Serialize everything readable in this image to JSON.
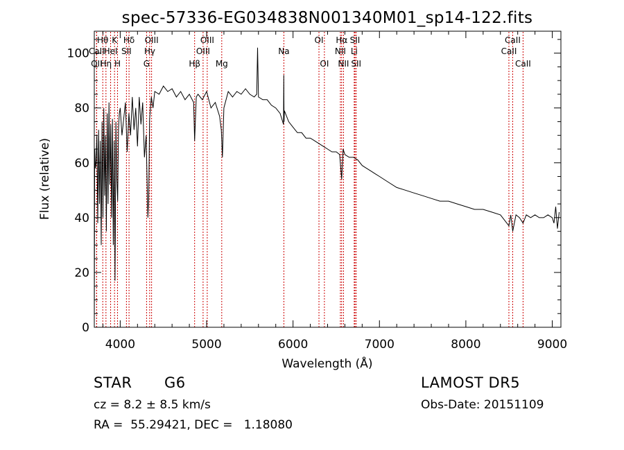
{
  "chart_data": {
    "type": "line",
    "title": "spec-57336-EG034838N001340M01_sp14-122.fits",
    "xlabel": "Wavelength (Å)",
    "ylabel": "Flux (relative)",
    "xlim": [
      3700,
      9100
    ],
    "ylim": [
      0,
      108
    ],
    "x_ticks": [
      4000,
      5000,
      6000,
      7000,
      8000,
      9000
    ],
    "y_ticks": [
      0,
      20,
      40,
      60,
      80,
      100
    ],
    "grid": false,
    "line_color": "#000000",
    "marker_color": "#cc0000",
    "series": [
      {
        "x": [
          3700,
          3705,
          3712,
          3720,
          3730,
          3740,
          3750,
          3760,
          3770,
          3780,
          3790,
          3800,
          3810,
          3820,
          3830,
          3840,
          3850,
          3860,
          3870,
          3880,
          3890,
          3900,
          3910,
          3920,
          3930,
          3940,
          3950,
          3960,
          3970,
          3980,
          3990,
          4000,
          4020,
          4040,
          4060,
          4080,
          4100,
          4120,
          4140,
          4160,
          4180,
          4200,
          4220,
          4240,
          4260,
          4280,
          4300,
          4320,
          4330,
          4340,
          4360,
          4380,
          4400,
          4450,
          4500,
          4550,
          4600,
          4650,
          4700,
          4750,
          4800,
          4850,
          4861,
          4880,
          4900,
          4950,
          5000,
          5050,
          5100,
          5150,
          5170,
          5183,
          5200,
          5250,
          5300,
          5350,
          5400,
          5450,
          5500,
          5550,
          5580,
          5590,
          5600,
          5650,
          5700,
          5750,
          5800,
          5850,
          5890,
          5893,
          5896,
          5900,
          5950,
          6000,
          6050,
          6100,
          6150,
          6200,
          6250,
          6300,
          6350,
          6400,
          6450,
          6500,
          6540,
          6563,
          6580,
          6600,
          6650,
          6700,
          6750,
          6800,
          6850,
          6900,
          6950,
          7000,
          7100,
          7200,
          7300,
          7400,
          7500,
          7600,
          7700,
          7800,
          7900,
          8000,
          8100,
          8200,
          8300,
          8400,
          8498,
          8520,
          8542,
          8580,
          8620,
          8662,
          8700,
          8750,
          8800,
          8850,
          8900,
          8950,
          9000,
          9020,
          9040,
          9060,
          9080
        ],
        "y": [
          0,
          65,
          58,
          60,
          70,
          38,
          72,
          45,
          68,
          30,
          75,
          40,
          80,
          48,
          70,
          35,
          78,
          45,
          82,
          52,
          74,
          40,
          76,
          30,
          68,
          17,
          75,
          55,
          46,
          72,
          78,
          80,
          70,
          76,
          82,
          64,
          78,
          70,
          84,
          72,
          80,
          66,
          84,
          74,
          82,
          62,
          70,
          40,
          48,
          76,
          84,
          80,
          86,
          85,
          88,
          86,
          87,
          84,
          86,
          83,
          85,
          82,
          68,
          84,
          85,
          83,
          86,
          80,
          82,
          77,
          72,
          62,
          80,
          86,
          84,
          86,
          85,
          87,
          85,
          84,
          85,
          102,
          84,
          83,
          83,
          81,
          80,
          78,
          74,
          92,
          75,
          79,
          75,
          73,
          71,
          71,
          69,
          69,
          68,
          67,
          66,
          65,
          64,
          64,
          63,
          54,
          65,
          63,
          62,
          62,
          61,
          59,
          58,
          57,
          56,
          55,
          53,
          51,
          50,
          49,
          48,
          47,
          46,
          46,
          45,
          44,
          43,
          43,
          42,
          41,
          37,
          41,
          35,
          41,
          40,
          38,
          41,
          40,
          41,
          40,
          40,
          41,
          40,
          38,
          44,
          36,
          42
        ]
      }
    ],
    "spectral_lines": [
      {
        "name": "Hθ",
        "x": 3798,
        "row": 1
      },
      {
        "name": "CaII",
        "x": 3727,
        "row": 2
      },
      {
        "name": "OII",
        "x": 3727,
        "row": 3
      },
      {
        "name": "Hη",
        "x": 3835,
        "row": 3
      },
      {
        "name": "K",
        "x": 3934,
        "row": 1
      },
      {
        "name": "HeI",
        "x": 3889,
        "row": 2
      },
      {
        "name": "H",
        "x": 3969,
        "row": 3
      },
      {
        "name": "Hδ",
        "x": 4102,
        "row": 1
      },
      {
        "name": "SII",
        "x": 4072,
        "row": 2
      },
      {
        "name": "OIII",
        "x": 4363,
        "row": 1
      },
      {
        "name": "Hγ",
        "x": 4341,
        "row": 2
      },
      {
        "name": "G",
        "x": 4305,
        "row": 3
      },
      {
        "name": "Hβ",
        "x": 4861,
        "row": 3
      },
      {
        "name": "OIII",
        "x": 5007,
        "row": 1
      },
      {
        "name": "OIII",
        "x": 4959,
        "row": 2
      },
      {
        "name": "Mg",
        "x": 5175,
        "row": 3
      },
      {
        "name": "Na",
        "x": 5894,
        "row": 2
      },
      {
        "name": "OI",
        "x": 6300,
        "row": 1
      },
      {
        "name": "OI",
        "x": 6363,
        "row": 3
      },
      {
        "name": "Hα",
        "x": 6563,
        "row": 1
      },
      {
        "name": "NII",
        "x": 6548,
        "row": 2
      },
      {
        "name": "NII",
        "x": 6584,
        "row": 3
      },
      {
        "name": "SII",
        "x": 6717,
        "row": 1
      },
      {
        "name": "Li",
        "x": 6708,
        "row": 2
      },
      {
        "name": "SII",
        "x": 6731,
        "row": 3
      },
      {
        "name": "CaII",
        "x": 8542,
        "row": 1
      },
      {
        "name": "CaII",
        "x": 8498,
        "row": 2
      },
      {
        "name": "CaII",
        "x": 8662,
        "row": 3
      }
    ]
  },
  "info": {
    "object_class": "STAR",
    "subclass": "G6",
    "redshift": "cz = 8.2 ± 8.5 km/s",
    "coordinates": "RA =  55.29421, DEC =   1.18080",
    "survey": "LAMOST DR5",
    "obs_date": "Obs-Date: 20151109"
  }
}
